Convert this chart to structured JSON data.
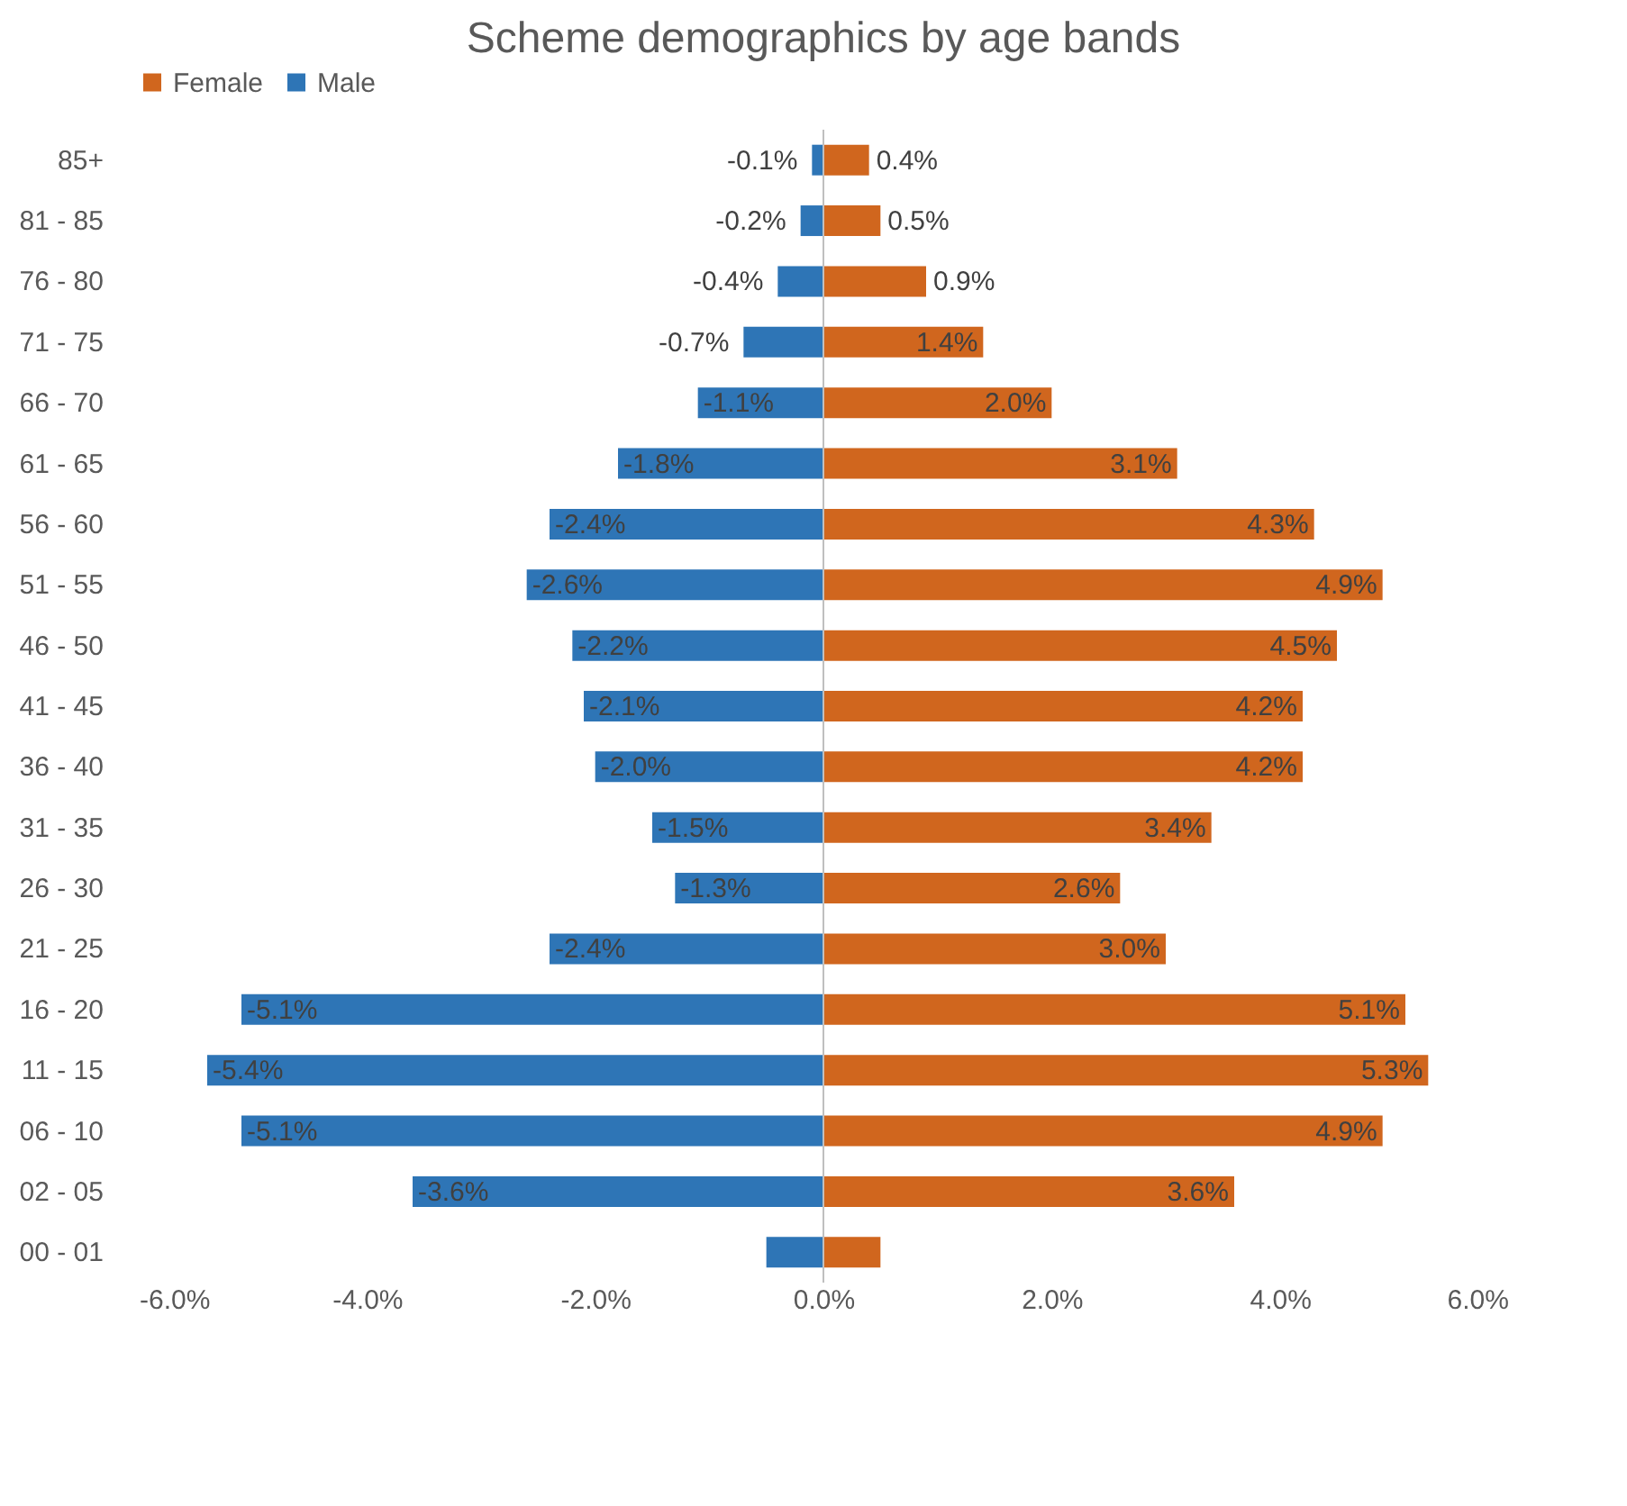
{
  "chart_data": {
    "type": "bar",
    "orientation": "horizontal",
    "title": "Scheme demographics by age bands",
    "categories": [
      "85+",
      "81 - 85",
      "76 - 80",
      "71 - 75",
      "66 - 70",
      "61 - 65",
      "56 - 60",
      "51 - 55",
      "46 - 50",
      "41 - 45",
      "36 - 40",
      "31 - 35",
      "26 - 30",
      "21 - 25",
      "16 - 20",
      "11 - 15",
      "06 - 10",
      "02 - 05",
      "00 - 01"
    ],
    "series": [
      {
        "name": "Female",
        "color": "#d0661e",
        "values": [
          0.4,
          0.5,
          0.9,
          1.4,
          2.0,
          3.1,
          4.3,
          4.9,
          4.5,
          4.2,
          4.2,
          3.4,
          2.6,
          3.0,
          5.1,
          5.3,
          4.9,
          3.6,
          0.5
        ],
        "value_labels": [
          "0.4%",
          "0.5%",
          "0.9%",
          "1.4%",
          "2.0%",
          "3.1%",
          "4.3%",
          "4.9%",
          "4.5%",
          "4.2%",
          "4.2%",
          "3.4%",
          "2.6%",
          "3.0%",
          "5.1%",
          "5.3%",
          "4.9%",
          "3.6%",
          null
        ]
      },
      {
        "name": "Male",
        "color": "#2e75b6",
        "values": [
          -0.1,
          -0.2,
          -0.4,
          -0.7,
          -1.1,
          -1.8,
          -2.4,
          -2.6,
          -2.2,
          -2.1,
          -2.0,
          -1.5,
          -1.3,
          -2.4,
          -5.1,
          -5.4,
          -5.1,
          -3.6,
          -0.5
        ],
        "value_labels": [
          "-0.1%",
          "-0.2%",
          "-0.4%",
          "-0.7%",
          "-1.1%",
          "-1.8%",
          "-2.4%",
          "-2.6%",
          "-2.2%",
          "-2.1%",
          "-2.0%",
          "-1.5%",
          "-1.3%",
          "-2.4%",
          "-5.1%",
          "-5.4%",
          "-5.1%",
          "-3.6%",
          null
        ]
      }
    ],
    "xlim": [
      -6,
      6
    ],
    "xticks": [
      {
        "value": -6,
        "label": "-6.0%"
      },
      {
        "value": -4,
        "label": "-4.0%"
      },
      {
        "value": -2,
        "label": "-2.0%"
      },
      {
        "value": 0,
        "label": "0.0%"
      },
      {
        "value": 2,
        "label": "2.0%"
      },
      {
        "value": 4,
        "label": "4.0%"
      },
      {
        "value": 6,
        "label": "6.0%"
      }
    ],
    "ref_lines": [
      {
        "axis": "x",
        "value": 0,
        "color": "#bfbfbf"
      }
    ],
    "legend": "top",
    "grid": false,
    "stacked": true
  }
}
